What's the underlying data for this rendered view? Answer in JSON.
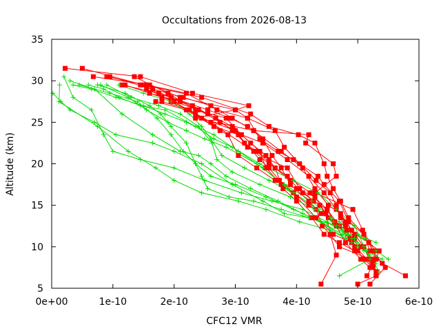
{
  "chart_data": {
    "type": "line",
    "title": "Occultations from 2026-08-13",
    "xlabel": "CFC12 VMR",
    "ylabel": "Altitude (km)",
    "xlim": [
      0,
      6e-10
    ],
    "ylim": [
      5,
      35
    ],
    "x_ticks": [
      "0e+00",
      "1e-10",
      "2e-10",
      "3e-10",
      "4e-10",
      "5e-10",
      "6e-10"
    ],
    "x_tick_values": [
      0,
      1e-10,
      2e-10,
      3e-10,
      4e-10,
      5e-10,
      6e-10
    ],
    "y_ticks": [
      "5",
      "10",
      "15",
      "20",
      "25",
      "30",
      "35"
    ],
    "y_tick_values": [
      5,
      10,
      15,
      20,
      25,
      30,
      35
    ],
    "grid": false,
    "legend": "none",
    "series_style": {
      "red": {
        "color": "#ff0000",
        "marker": "square"
      },
      "green": {
        "color": "#00dd00",
        "marker": "plus"
      }
    },
    "series": [
      {
        "style": "red",
        "x": [
          2.2e-11,
          1.45e-10,
          2.3e-10,
          3.22e-10,
          3e-10,
          2.35e-10,
          3.3e-10,
          4.2e-10,
          4.15e-10,
          4.6e-10,
          4.65e-10,
          4.3e-10,
          4.92e-10,
          5.08e-10,
          5.28e-10,
          5.25e-10,
          5.3e-10,
          5e-10
        ],
        "y": [
          31.5,
          30.5,
          28.5,
          27.0,
          26.5,
          25.5,
          24.0,
          23.5,
          22.5,
          20.0,
          18.5,
          16.5,
          14.5,
          12.0,
          9.5,
          8.0,
          6.5,
          5.5
        ]
      },
      {
        "style": "red",
        "x": [
          5e-11,
          1.5e-10,
          2.45e-10,
          3.25e-10,
          3.55e-10,
          4.03e-10,
          4.3e-10,
          4.45e-10,
          4.5e-10,
          4.6e-10,
          4.72e-10,
          4.85e-10,
          5.1e-10,
          5.2e-10,
          5.4e-10,
          5.78e-10
        ],
        "y": [
          31.5,
          29.5,
          28.0,
          26.0,
          24.5,
          23.5,
          22.5,
          20.0,
          18.5,
          17.0,
          15.5,
          13.5,
          11.5,
          9.5,
          8.0,
          6.5
        ]
      },
      {
        "style": "red",
        "x": [
          6.8e-11,
          1.6e-10,
          2.1e-10,
          3e-10,
          3.2e-10,
          3.4e-10,
          3.7e-10,
          3.95e-10,
          4.35e-10,
          4.45e-10,
          4.7e-10,
          4.85e-10,
          5.1e-10,
          5.25e-10,
          5.45e-10,
          5.2e-10
        ],
        "y": [
          30.5,
          29.5,
          28.0,
          26.5,
          25.5,
          23.0,
          21.5,
          20.5,
          18.5,
          17.5,
          15.5,
          13.0,
          11.5,
          9.5,
          7.5,
          5.5
        ]
      },
      {
        "style": "red",
        "x": [
          9e-11,
          1.55e-10,
          2.2e-10,
          2.7e-10,
          3.2e-10,
          3.65e-10,
          3.8e-10,
          4.05e-10,
          4.32e-10,
          4.55e-10,
          4.65e-10,
          4.72e-10,
          4.88e-10,
          5.05e-10,
          5.25e-10
        ],
        "y": [
          30.5,
          29.5,
          28.5,
          26.5,
          25.5,
          24.0,
          22.0,
          20.0,
          18.0,
          16.5,
          15.0,
          13.5,
          11.0,
          10.0,
          8.5
        ]
      },
      {
        "style": "red",
        "x": [
          9.5e-11,
          1.65e-10,
          2.15e-10,
          2.6e-10,
          2.95e-10,
          3.3e-10,
          3.75e-10,
          4.1e-10,
          4.3e-10,
          4.52e-10,
          4.72e-10,
          4.95e-10,
          5.18e-10,
          5.35e-10,
          5.3e-10,
          5.15e-10
        ],
        "y": [
          30.5,
          29.0,
          28.0,
          27.0,
          25.5,
          24.0,
          21.5,
          19.5,
          17.0,
          15.0,
          14.0,
          11.5,
          10.5,
          9.5,
          8.5,
          6.5
        ]
      },
      {
        "style": "red",
        "x": [
          1.15e-10,
          1.75e-10,
          2.3e-10,
          2.68e-10,
          2.95e-10,
          3.3e-10,
          3.55e-10,
          3.85e-10,
          4.22e-10,
          4.5e-10,
          4.7e-10,
          4.95e-10,
          5.1e-10,
          5.25e-10
        ],
        "y": [
          29.5,
          28.5,
          27.0,
          25.5,
          24.0,
          21.5,
          20.0,
          18.5,
          16.5,
          14.5,
          12.5,
          10.0,
          8.5,
          7.5
        ]
      },
      {
        "style": "red",
        "x": [
          1.2e-10,
          1.8e-10,
          2.4e-10,
          2.75e-10,
          3.1e-10,
          3.4e-10,
          3.5e-10,
          3.75e-10,
          4e-10,
          4.32e-10,
          4.6e-10,
          4.9e-10,
          5.15e-10,
          5.3e-10
        ],
        "y": [
          29.5,
          28.0,
          26.5,
          25.0,
          23.5,
          21.5,
          19.5,
          17.5,
          16.0,
          13.5,
          11.5,
          10.5,
          8.5,
          7.0
        ]
      },
      {
        "style": "red",
        "x": [
          1.35e-10,
          1.9e-10,
          2.35e-10,
          2.85e-10,
          3.1e-10,
          3.45e-10,
          3.85e-10,
          4.2e-10,
          4.45e-10,
          4.65e-10,
          4.8e-10,
          4.9e-10,
          5.1e-10,
          5.3e-10
        ],
        "y": [
          30.5,
          28.5,
          26.5,
          25.5,
          23.5,
          22.5,
          20.5,
          18.5,
          16.5,
          14.5,
          13.0,
          12.0,
          10.0,
          6.5
        ]
      },
      {
        "style": "red",
        "x": [
          1.45e-10,
          1.95e-10,
          2.55e-10,
          2.92e-10,
          3.2e-10,
          3.45e-10,
          3.6e-10,
          3.75e-10,
          3.9e-10,
          4.2e-10,
          4.4e-10,
          4.62e-10,
          4.82e-10,
          4.9e-10,
          5e-10
        ],
        "y": [
          29.5,
          28.0,
          26.5,
          25.5,
          24.5,
          23.0,
          21.0,
          19.5,
          17.5,
          15.5,
          14.0,
          13.0,
          12.0,
          10.5,
          9.5
        ]
      },
      {
        "style": "red",
        "x": [
          1.55e-10,
          2e-10,
          2.45e-10,
          3e-10,
          3.15e-10,
          3.35e-10,
          3.65e-10,
          3.9e-10,
          4.1e-10,
          4.38e-10,
          4.52e-10,
          4.65e-10,
          4.8e-10,
          5.05e-10,
          5.2e-10
        ],
        "y": [
          29.0,
          27.5,
          25.5,
          24.0,
          22.5,
          21.5,
          19.5,
          18.0,
          16.5,
          15.0,
          13.5,
          12.5,
          10.5,
          8.5,
          7.5
        ]
      },
      {
        "style": "red",
        "x": [
          1.6e-10,
          2.1e-10,
          2.55e-10,
          2.95e-10,
          3.25e-10,
          3.5e-10,
          3.65e-10,
          3.78e-10,
          4e-10,
          4.25e-10,
          4.45e-10,
          4.7e-10,
          4.95e-10
        ],
        "y": [
          28.5,
          27.5,
          26.0,
          24.5,
          22.5,
          21.0,
          19.5,
          17.0,
          15.5,
          13.5,
          11.5,
          10.5,
          9.5
        ]
      },
      {
        "style": "red",
        "x": [
          1.7e-10,
          2.2e-10,
          2.65e-10,
          3.05e-10,
          3.4e-10,
          3.55e-10,
          3.72e-10,
          3.95e-10,
          4.2e-10,
          4.32e-10,
          4.42e-10,
          4.55e-10,
          4.7e-10,
          5.2e-10
        ],
        "y": [
          27.5,
          26.5,
          24.5,
          23.5,
          20.5,
          19.5,
          18.0,
          16.5,
          15.0,
          14.5,
          12.5,
          11.5,
          10.0,
          8.5
        ]
      },
      {
        "style": "red",
        "x": [
          1.8e-10,
          2.25e-10,
          2.6e-10,
          3.2e-10,
          3.35e-10,
          3.55e-10,
          3.85e-10,
          4.05e-10,
          4.28e-10,
          4.5e-10,
          4.62e-10,
          4.8e-10,
          4.95e-10
        ],
        "y": [
          27.5,
          26.5,
          25.0,
          22.0,
          21.5,
          20.5,
          19.5,
          17.0,
          15.5,
          14.5,
          13.0,
          12.5,
          11.0
        ]
      },
      {
        "style": "red",
        "x": [
          1.95e-10,
          2.35e-10,
          2.75e-10,
          2.88e-10,
          3.05e-10,
          3.35e-10,
          3.65e-10,
          4e-10,
          4.3e-10,
          4.48e-10,
          4.55e-10,
          4.65e-10,
          4.4e-10
        ],
        "y": [
          27.5,
          26.0,
          24.0,
          23.5,
          21.0,
          19.5,
          18.0,
          17.0,
          16.0,
          14.0,
          11.5,
          9.0,
          5.5
        ]
      }
    ],
    "green_series": [
      {
        "style": "green",
        "x": [
          1.3e-11,
          1.2e-11,
          7.5e-11,
          1.25e-10,
          1.7e-10,
          2e-10,
          2.45e-10,
          3.05e-10,
          3.5e-10,
          4.05e-10,
          4.55e-10,
          4.8e-10,
          5.15e-10,
          5.4e-10
        ],
        "y": [
          29.5,
          27.5,
          24.5,
          21.5,
          19.5,
          18.0,
          16.5,
          15.5,
          14.5,
          13.0,
          12.0,
          11.0,
          9.5,
          8.5
        ]
      },
      {
        "style": "green",
        "x": [
          2e-12,
          1.5e-11,
          3e-11,
          7e-11,
          1.05e-10,
          1.65e-10,
          2e-10,
          2.45e-10,
          2.95e-10,
          3.45e-10,
          3.8e-10,
          4.2e-10,
          4.7e-10,
          5.1e-10,
          5.3e-10,
          5.5e-10
        ],
        "y": [
          28.5,
          27.5,
          26.5,
          25.0,
          23.5,
          22.5,
          21.5,
          20.0,
          17.5,
          15.5,
          14.0,
          13.5,
          12.5,
          11.0,
          9.5,
          8.5
        ]
      },
      {
        "style": "green",
        "x": [
          2e-11,
          3.5e-11,
          6.5e-11,
          8.5e-11,
          1e-10,
          1.45e-10,
          2e-10,
          2.5e-10,
          3.1e-10,
          3.6e-10,
          4.1e-10,
          4.5e-10,
          4.8e-10,
          5.1e-10,
          5.35e-10
        ],
        "y": [
          30.5,
          28.0,
          26.5,
          23.5,
          21.5,
          20.5,
          19.5,
          18.0,
          16.5,
          15.5,
          14.5,
          13.0,
          11.5,
          10.0,
          7.0
        ]
      },
      {
        "style": "green",
        "x": [
          3.5e-11,
          6.5e-11,
          1.05e-10,
          1.5e-10,
          1.85e-10,
          2.2e-10,
          2.65e-10,
          3.05e-10,
          3.45e-10,
          3.85e-10,
          4.25e-10,
          4.6e-10,
          4.95e-10,
          5.2e-10
        ],
        "y": [
          29.5,
          29.0,
          28.0,
          27.0,
          26.0,
          25.0,
          23.5,
          21.5,
          19.5,
          17.0,
          15.0,
          13.0,
          11.0,
          9.0
        ]
      },
      {
        "style": "green",
        "x": [
          4.5e-11,
          9.5e-11,
          1.4e-10,
          1.72e-10,
          1.95e-10,
          2.15e-10,
          2.35e-10,
          2.45e-10,
          2.55e-10,
          2.9e-10,
          3.3e-10,
          3.75e-10,
          4.2e-10,
          4.65e-10,
          4.95e-10,
          5.3e-10
        ],
        "y": [
          29.5,
          28.5,
          27.5,
          25.5,
          23.5,
          21.5,
          20.0,
          18.5,
          17.0,
          16.0,
          15.5,
          14.5,
          13.5,
          12.5,
          11.0,
          8.0
        ]
      },
      {
        "style": "green",
        "x": [
          6e-11,
          8.5e-11,
          1.1e-10,
          1.45e-10,
          1.85e-10,
          2.35e-10,
          2.65e-10,
          2.95e-10,
          3.4e-10,
          3.95e-10,
          4.35e-10,
          4.65e-10,
          4.95e-10,
          5.2e-10,
          4.7e-10
        ],
        "y": [
          29.5,
          29.0,
          28.0,
          27.0,
          26.5,
          24.5,
          23.0,
          22.0,
          20.0,
          18.0,
          16.5,
          14.5,
          12.5,
          8.5,
          6.5
        ]
      },
      {
        "style": "green",
        "x": [
          7.5e-11,
          1.2e-10,
          1.6e-10,
          1.78e-10,
          1.95e-10,
          2.2e-10,
          2.35e-10,
          2.6e-10,
          3e-10,
          3.5e-10,
          3.95e-10,
          4.4e-10,
          4.75e-10,
          5e-10
        ],
        "y": [
          29.5,
          28.5,
          27.0,
          26.0,
          24.5,
          22.5,
          20.0,
          18.5,
          17.5,
          16.0,
          14.5,
          13.0,
          11.5,
          10.0
        ]
      },
      {
        "style": "green",
        "x": [
          8e-11,
          1.25e-10,
          1.55e-10,
          1.9e-10,
          2.2e-10,
          2.5e-10,
          2.85e-10,
          3.35e-10,
          3.8e-10,
          4.25e-10,
          4.55e-10,
          4.85e-10,
          5.1e-10
        ],
        "y": [
          29.5,
          28.0,
          26.5,
          25.0,
          24.0,
          23.0,
          22.0,
          20.0,
          17.5,
          15.5,
          13.5,
          11.5,
          9.5
        ]
      },
      {
        "style": "green",
        "x": [
          9e-11,
          1.3e-10,
          1.75e-10,
          2.1e-10,
          2.4e-10,
          2.62e-10,
          2.7e-10,
          2.95e-10,
          3.4e-10,
          3.9e-10,
          4.3e-10,
          4.7e-10,
          5e-10,
          5.3e-10
        ],
        "y": [
          29.5,
          28.0,
          27.0,
          26.0,
          24.5,
          22.5,
          20.5,
          19.0,
          17.5,
          16.0,
          14.5,
          13.0,
          11.5,
          10.5
        ]
      },
      {
        "style": "green",
        "x": [
          1.1e-10,
          1.5e-10,
          1.95e-10,
          2.25e-10,
          2.45e-10,
          2.6e-10,
          2.78e-10,
          3.15e-10,
          3.55e-10,
          3.95e-10,
          4.35e-10,
          4.65e-10,
          4.9e-10
        ],
        "y": [
          29.5,
          28.5,
          27.5,
          26.0,
          24.5,
          23.0,
          21.0,
          19.5,
          18.0,
          16.5,
          14.5,
          12.5,
          11.0
        ]
      },
      {
        "style": "green",
        "x": [
          3e-11,
          7e-11,
          1.15e-10,
          1.65e-10,
          2.1e-10,
          2.4e-10,
          2.6e-10,
          2.85e-10,
          3.25e-10,
          3.7e-10,
          4.1e-10,
          4.5e-10,
          4.9e-10
        ],
        "y": [
          30.0,
          29.0,
          26.0,
          23.5,
          21.5,
          21.0,
          20.0,
          18.5,
          17.0,
          15.5,
          14.0,
          12.5,
          10.5
        ]
      }
    ]
  }
}
